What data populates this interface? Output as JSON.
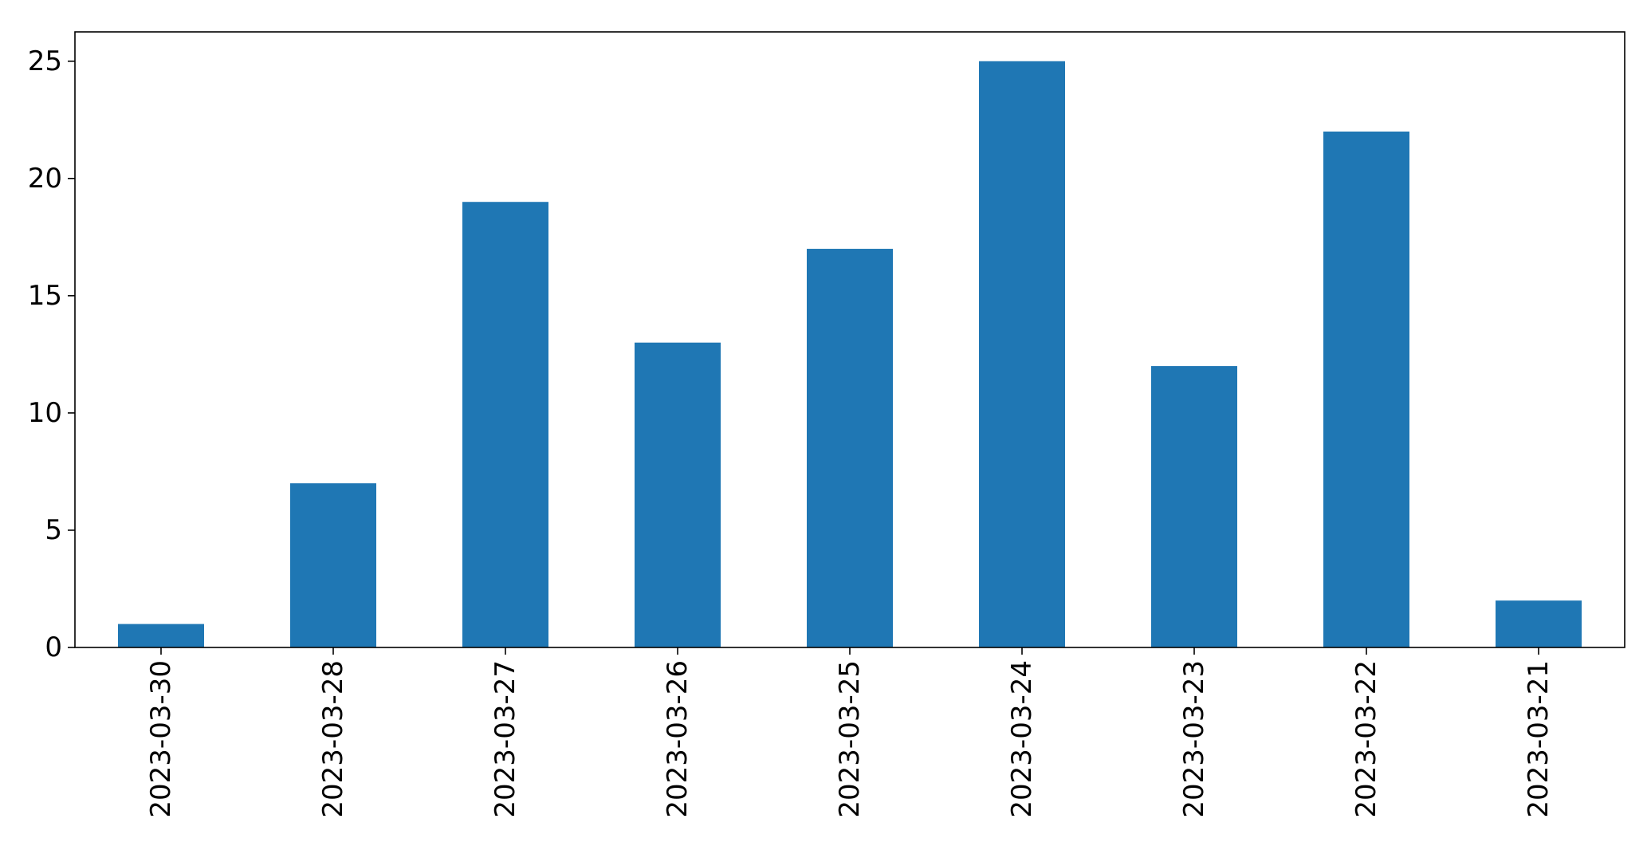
{
  "chart_data": {
    "type": "bar",
    "categories": [
      "2023-03-30",
      "2023-03-28",
      "2023-03-27",
      "2023-03-26",
      "2023-03-25",
      "2023-03-24",
      "2023-03-23",
      "2023-03-22",
      "2023-03-21"
    ],
    "values": [
      1,
      7,
      19,
      13,
      17,
      25,
      12,
      22,
      2
    ],
    "title": "",
    "xlabel": "",
    "ylabel": "",
    "ylim": [
      0,
      26.25
    ],
    "yticks": [
      0,
      5,
      10,
      15,
      20,
      25
    ],
    "xtick_rotation": "vertical",
    "grid": false,
    "legend": "none",
    "bar_color": "#1f77b4"
  }
}
